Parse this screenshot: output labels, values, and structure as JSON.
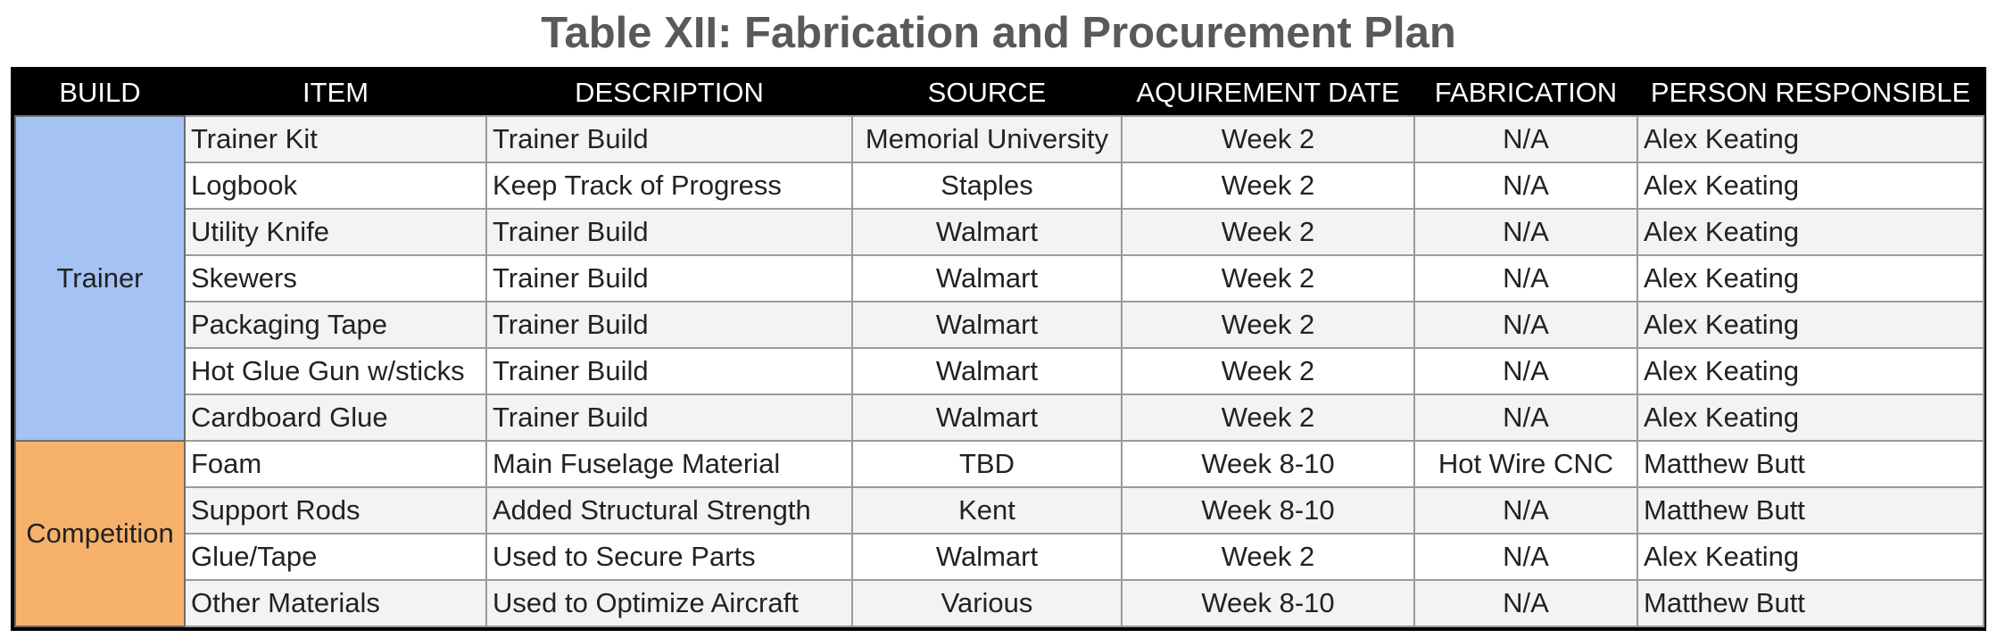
{
  "title": "Table XII: Fabrication and Procurement Plan",
  "colors": {
    "trainer_group": "#a4c2f4",
    "competition_group": "#f6b26b",
    "header_bg": "#000000",
    "title_text": "#595959"
  },
  "headers": [
    "BUILD",
    "ITEM",
    "DESCRIPTION",
    "SOURCE",
    "AQUIREMENT DATE",
    "FABRICATION",
    "PERSON RESPONSIBLE"
  ],
  "groups": [
    {
      "build": "Trainer",
      "rows": [
        [
          "Trainer Kit",
          "Trainer Build",
          "Memorial University",
          "Week 2",
          "N/A",
          "Alex Keating"
        ],
        [
          "Logbook",
          "Keep Track of Progress",
          "Staples",
          "Week 2",
          "N/A",
          "Alex Keating"
        ],
        [
          "Utility Knife",
          "Trainer Build",
          "Walmart",
          "Week 2",
          "N/A",
          "Alex Keating"
        ],
        [
          "Skewers",
          "Trainer Build",
          "Walmart",
          "Week 2",
          "N/A",
          "Alex Keating"
        ],
        [
          "Packaging Tape",
          "Trainer Build",
          "Walmart",
          "Week 2",
          "N/A",
          "Alex Keating"
        ],
        [
          "Hot Glue Gun w/sticks",
          "Trainer Build",
          "Walmart",
          "Week 2",
          "N/A",
          "Alex Keating"
        ],
        [
          "Cardboard Glue",
          "Trainer Build",
          "Walmart",
          "Week 2",
          "N/A",
          "Alex Keating"
        ]
      ]
    },
    {
      "build": "Competition",
      "rows": [
        [
          "Foam",
          "Main Fuselage Material",
          "TBD",
          "Week 8-10",
          "Hot Wire CNC",
          "Matthew Butt"
        ],
        [
          "Support Rods",
          "Added Structural Strength",
          "Kent",
          "Week 8-10",
          "N/A",
          "Matthew Butt"
        ],
        [
          "Glue/Tape",
          "Used to Secure Parts",
          "Walmart",
          "Week 2",
          "N/A",
          "Alex Keating"
        ],
        [
          "Other Materials",
          "Used to Optimize Aircraft",
          "Various",
          "Week 8-10",
          "N/A",
          "Matthew Butt"
        ]
      ]
    }
  ]
}
